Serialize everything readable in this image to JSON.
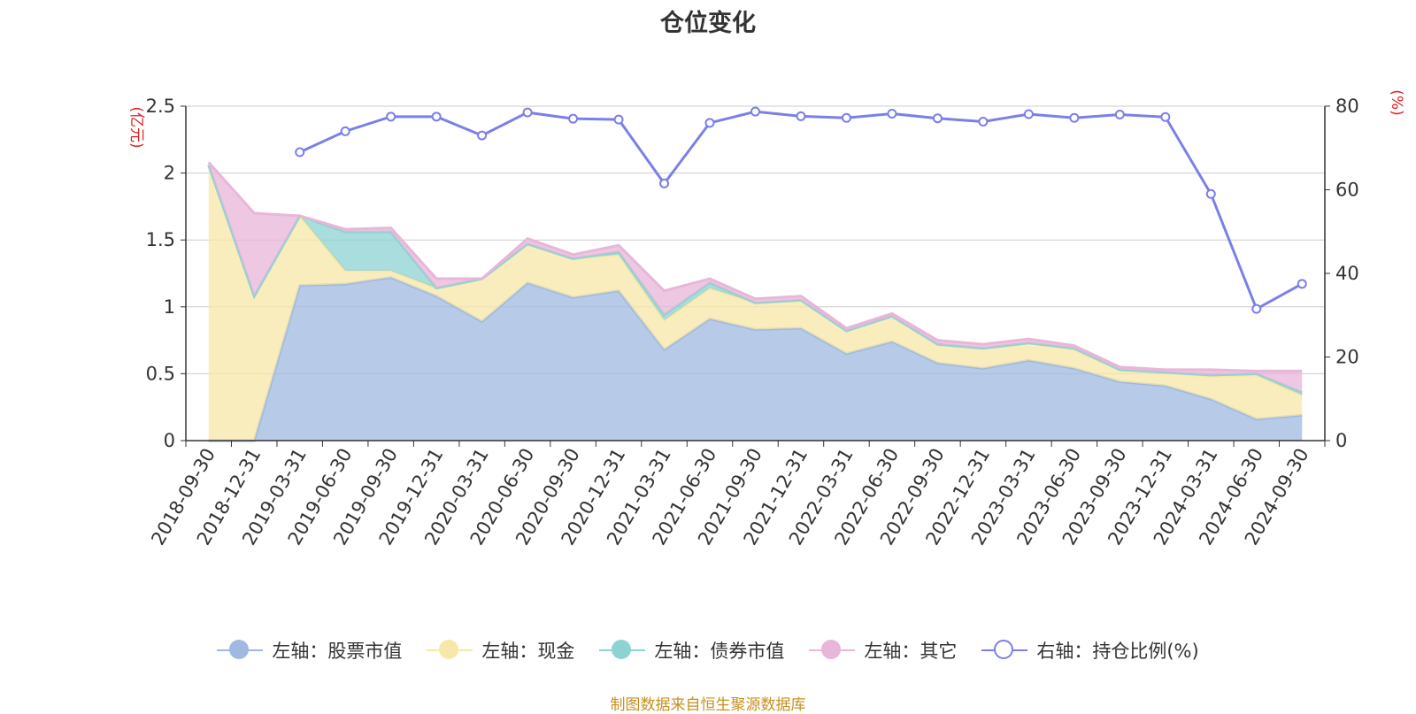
{
  "chart_data": {
    "type": "area",
    "title": "仓位变化",
    "left_axis_unit": "(亿元)",
    "right_axis_unit": "(%)",
    "ylim_left": [
      0,
      2.5
    ],
    "ylim_right": [
      0,
      80
    ],
    "yticks_left": [
      "0",
      "0.5",
      "1",
      "1.5",
      "2",
      "2.5"
    ],
    "yticks_right": [
      "0",
      "20",
      "40",
      "60",
      "80"
    ],
    "categories": [
      "2018-09-30",
      "2018-12-31",
      "2019-03-31",
      "2019-06-30",
      "2019-09-30",
      "2019-12-31",
      "2020-03-31",
      "2020-06-30",
      "2020-09-30",
      "2020-12-31",
      "2021-03-31",
      "2021-06-30",
      "2021-09-30",
      "2021-12-31",
      "2022-03-31",
      "2022-06-30",
      "2022-09-30",
      "2022-12-31",
      "2023-03-31",
      "2023-06-30",
      "2023-09-30",
      "2023-12-31",
      "2024-03-31",
      "2024-06-30",
      "2024-09-30"
    ],
    "series": [
      {
        "name": "左轴：股票市值",
        "axis": "left",
        "color": "#9fb9e0",
        "values": [
          0,
          0,
          1.16,
          1.17,
          1.22,
          1.08,
          0.89,
          1.18,
          1.07,
          1.12,
          0.68,
          0.91,
          0.83,
          0.84,
          0.65,
          0.74,
          0.58,
          0.54,
          0.6,
          0.54,
          0.44,
          0.41,
          0.31,
          0.16,
          0.19
        ]
      },
      {
        "name": "左轴：现金",
        "axis": "left",
        "color": "#f7e7a8",
        "values": [
          2.06,
          1.08,
          0.52,
          0.1,
          0.05,
          0.06,
          0.32,
          0.29,
          0.29,
          0.27,
          0.22,
          0.23,
          0.2,
          0.21,
          0.17,
          0.19,
          0.14,
          0.15,
          0.13,
          0.14,
          0.09,
          0.1,
          0.17,
          0.33,
          0.15
        ]
      },
      {
        "name": "左轴：债券市值",
        "axis": "left",
        "color": "#8dd3d3",
        "values": [
          0,
          0,
          0,
          0.29,
          0.29,
          0,
          0,
          0,
          0,
          0.02,
          0.04,
          0.04,
          0,
          0,
          0,
          0,
          0,
          0,
          0,
          0.01,
          0,
          0,
          0.01,
          0.01,
          0.02
        ]
      },
      {
        "name": "左轴：其它",
        "axis": "left",
        "color": "#e8b6d8",
        "values": [
          0.02,
          0.62,
          0,
          0.02,
          0.03,
          0.07,
          0,
          0.04,
          0.03,
          0.05,
          0.18,
          0.03,
          0.03,
          0.03,
          0.02,
          0.02,
          0.03,
          0.03,
          0.03,
          0.02,
          0.02,
          0.02,
          0.04,
          0.02,
          0.16
        ]
      },
      {
        "name": "右轴：持仓比例(%)",
        "axis": "right",
        "color": "#7b7fe8",
        "type": "line",
        "values": [
          null,
          null,
          69,
          74,
          77.5,
          77.5,
          73,
          78.5,
          77,
          76.8,
          61.5,
          76,
          78.7,
          77.6,
          77.2,
          78.2,
          77.1,
          76.3,
          78.1,
          77.2,
          78,
          77.4,
          59,
          31.5,
          37.5
        ]
      }
    ]
  },
  "footer": "制图数据来自恒生聚源数据库"
}
